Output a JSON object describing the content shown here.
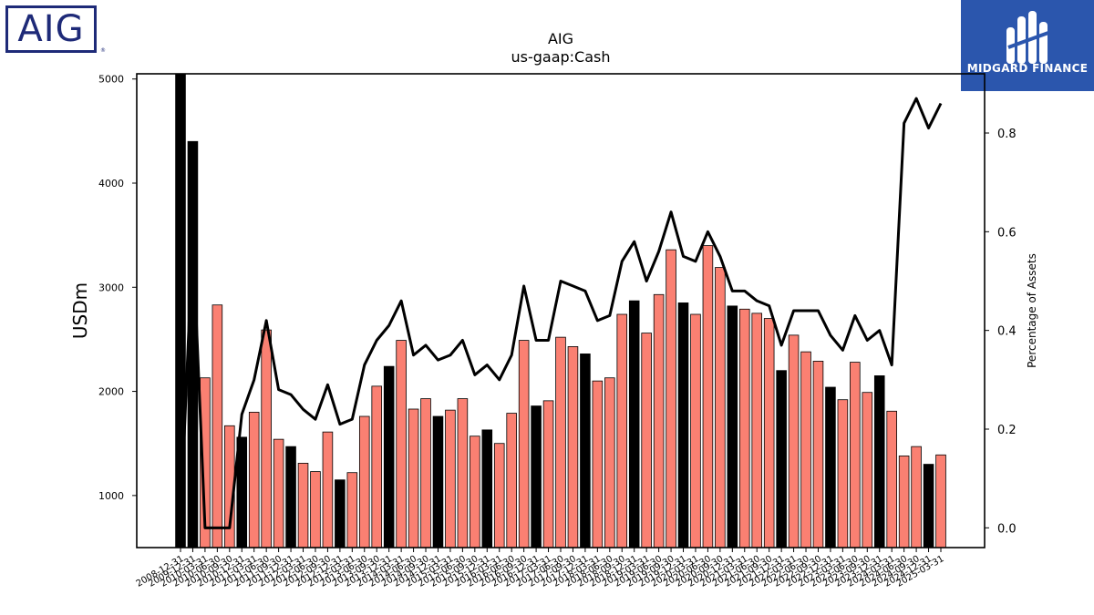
{
  "logos": {
    "left_text": "AIG",
    "right_text": "MIDGARD FINANCE"
  },
  "chart_data": {
    "type": "bar",
    "title": "AIG",
    "subtitle": "us-gaap:Cash",
    "ylabel": "USDm",
    "y2label": "Percentage of Assets",
    "ylim": [
      500,
      5050
    ],
    "y2lim": [
      -0.04,
      0.92
    ],
    "yticks": [
      1000,
      2000,
      3000,
      4000,
      5000
    ],
    "y2ticks": [
      0.0,
      0.2,
      0.4,
      0.6,
      0.8
    ],
    "colors": {
      "annual": "#000000",
      "quarterly": "#fa8072",
      "line": "#000000"
    },
    "categories": [
      "2008-12-31",
      "2009-12-31",
      "2010-03-31",
      "2010-06-30",
      "2010-09-30",
      "2010-12-31",
      "2011-03-31",
      "2011-06-30",
      "2011-09-30",
      "2011-12-31",
      "2012-03-31",
      "2012-06-30",
      "2012-09-30",
      "2012-12-31",
      "2013-03-31",
      "2013-06-30",
      "2013-09-30",
      "2013-12-31",
      "2014-03-31",
      "2014-06-30",
      "2014-09-30",
      "2014-12-31",
      "2015-03-31",
      "2015-06-30",
      "2015-09-30",
      "2015-12-31",
      "2016-03-31",
      "2016-06-30",
      "2016-09-30",
      "2016-12-31",
      "2017-03-31",
      "2017-06-30",
      "2017-09-30",
      "2017-12-31",
      "2018-03-31",
      "2018-06-30",
      "2018-09-30",
      "2018-12-31",
      "2019-03-31",
      "2019-06-30",
      "2019-09-30",
      "2019-12-31",
      "2020-03-31",
      "2020-06-30",
      "2020-09-30",
      "2020-12-31",
      "2021-03-31",
      "2021-06-30",
      "2021-09-30",
      "2021-12-31",
      "2022-03-31",
      "2022-06-30",
      "2022-09-30",
      "2022-12-31",
      "2023-03-31",
      "2023-06-30",
      "2023-09-30",
      "2023-12-31",
      "2024-03-31",
      "2024-06-30",
      "2024-09-30",
      "2024-12-31",
      "2025-03-31"
    ],
    "values": [
      5050,
      4400,
      2130,
      2830,
      1670,
      1560,
      1800,
      2590,
      1540,
      1470,
      1310,
      1230,
      1610,
      1150,
      1220,
      1760,
      2050,
      2240,
      2490,
      1830,
      1930,
      1760,
      1820,
      1930,
      1570,
      1630,
      1500,
      1790,
      2490,
      1860,
      1910,
      2520,
      2430,
      2360,
      2100,
      2130,
      2740,
      2870,
      2560,
      2930,
      3360,
      2850,
      2740,
      3400,
      3190,
      2820,
      2790,
      2750,
      2700,
      2200,
      2540,
      2380,
      2290,
      2040,
      1920,
      2280,
      1990,
      2150,
      1810,
      1380,
      1470,
      1300,
      1390
    ],
    "annual": [
      true,
      true,
      false,
      false,
      false,
      true,
      false,
      false,
      false,
      true,
      false,
      false,
      false,
      true,
      false,
      false,
      false,
      true,
      false,
      false,
      false,
      true,
      false,
      false,
      false,
      true,
      false,
      false,
      false,
      true,
      false,
      false,
      false,
      true,
      false,
      false,
      false,
      true,
      false,
      false,
      false,
      true,
      false,
      false,
      false,
      true,
      false,
      false,
      false,
      true,
      false,
      false,
      false,
      true,
      false,
      false,
      false,
      true,
      false,
      false,
      false,
      true,
      false
    ],
    "pct_assets": [
      0.01,
      0.59,
      0.0,
      0.0,
      0.0,
      0.23,
      0.3,
      0.42,
      0.28,
      0.27,
      0.24,
      0.22,
      0.29,
      0.21,
      0.22,
      0.33,
      0.38,
      0.41,
      0.46,
      0.35,
      0.37,
      0.34,
      0.35,
      0.38,
      0.31,
      0.33,
      0.3,
      0.35,
      0.49,
      0.38,
      0.38,
      0.5,
      0.49,
      0.48,
      0.42,
      0.43,
      0.54,
      0.58,
      0.5,
      0.56,
      0.64,
      0.55,
      0.54,
      0.6,
      0.55,
      0.48,
      0.48,
      0.46,
      0.45,
      0.37,
      0.44,
      0.44,
      0.44,
      0.39,
      0.36,
      0.43,
      0.38,
      0.4,
      0.33,
      0.82,
      0.87,
      0.81,
      0.86
    ]
  }
}
